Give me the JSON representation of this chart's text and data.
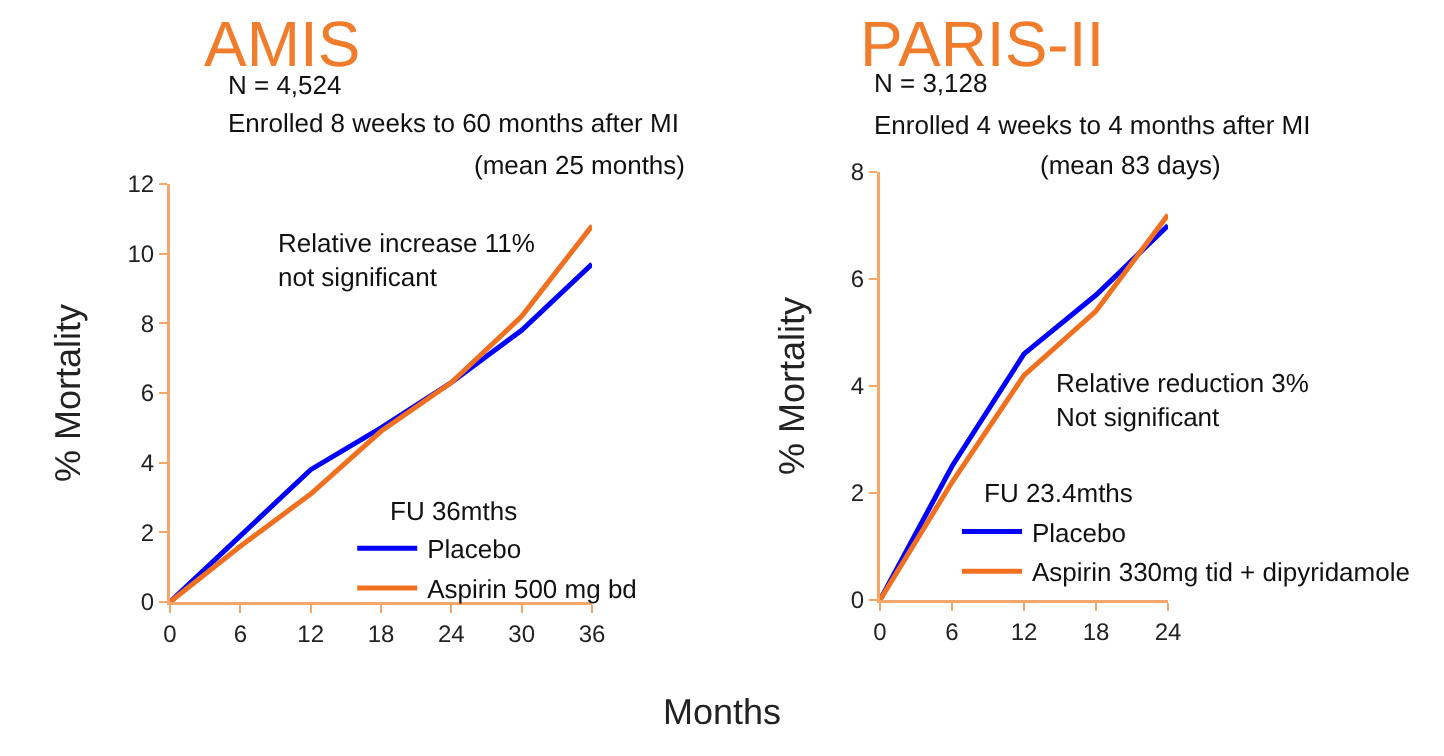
{
  "chart_data": [
    {
      "type": "line",
      "title": "AMIS",
      "subtitle": "N = 4,524",
      "xlabel": "Months",
      "ylabel": "% Mortality",
      "x": [
        0,
        6,
        12,
        18,
        24,
        30,
        36
      ],
      "xlim": [
        0,
        36
      ],
      "xticks": [
        0,
        6,
        12,
        18,
        24,
        30,
        36
      ],
      "ylim": [
        0,
        12
      ],
      "yticks": [
        0,
        2,
        4,
        6,
        8,
        10,
        12
      ],
      "series": [
        {
          "name": "Placebo",
          "color": "#0000ff",
          "values": [
            0,
            1.9,
            3.8,
            5.0,
            6.3,
            7.8,
            9.7
          ]
        },
        {
          "name": "Aspirin 500 mg bd",
          "color": "#f07020",
          "values": [
            0,
            1.6,
            3.1,
            4.9,
            6.3,
            8.2,
            10.8
          ]
        }
      ],
      "annotations": [
        "Enrolled 8 weeks to 60 months after MI",
        "(mean 25 months)",
        "Relative increase 11%\nnot significant",
        "FU 36mths"
      ],
      "grid": false,
      "legend": "bottom right",
      "marker": "none",
      "line_style": "solid"
    },
    {
      "type": "line",
      "title": "PARIS-II",
      "subtitle": "N = 3,128",
      "ylabel": "% Mortality",
      "x": [
        0,
        6,
        12,
        18,
        24
      ],
      "xlim": [
        0,
        24
      ],
      "xticks": [
        0,
        6,
        12,
        18,
        24
      ],
      "ylim": [
        0,
        8
      ],
      "yticks": [
        0,
        2,
        4,
        6,
        8
      ],
      "series": [
        {
          "name": "Placebo",
          "color": "#0000ff",
          "values": [
            0,
            2.5,
            4.6,
            5.7,
            7.0
          ]
        },
        {
          "name": "Aspirin 330mg tid + dipyridamole",
          "color": "#f07020",
          "values": [
            0,
            2.2,
            4.2,
            5.4,
            7.2
          ]
        }
      ],
      "annotations": [
        "Enrolled 4 weeks to 4 months after MI",
        "(mean 83 days)",
        "Relative reduction 3%\nNot significant",
        "FU 23.4mths"
      ],
      "grid": false,
      "legend": "bottom right",
      "marker": "none",
      "line_style": "solid"
    }
  ]
}
